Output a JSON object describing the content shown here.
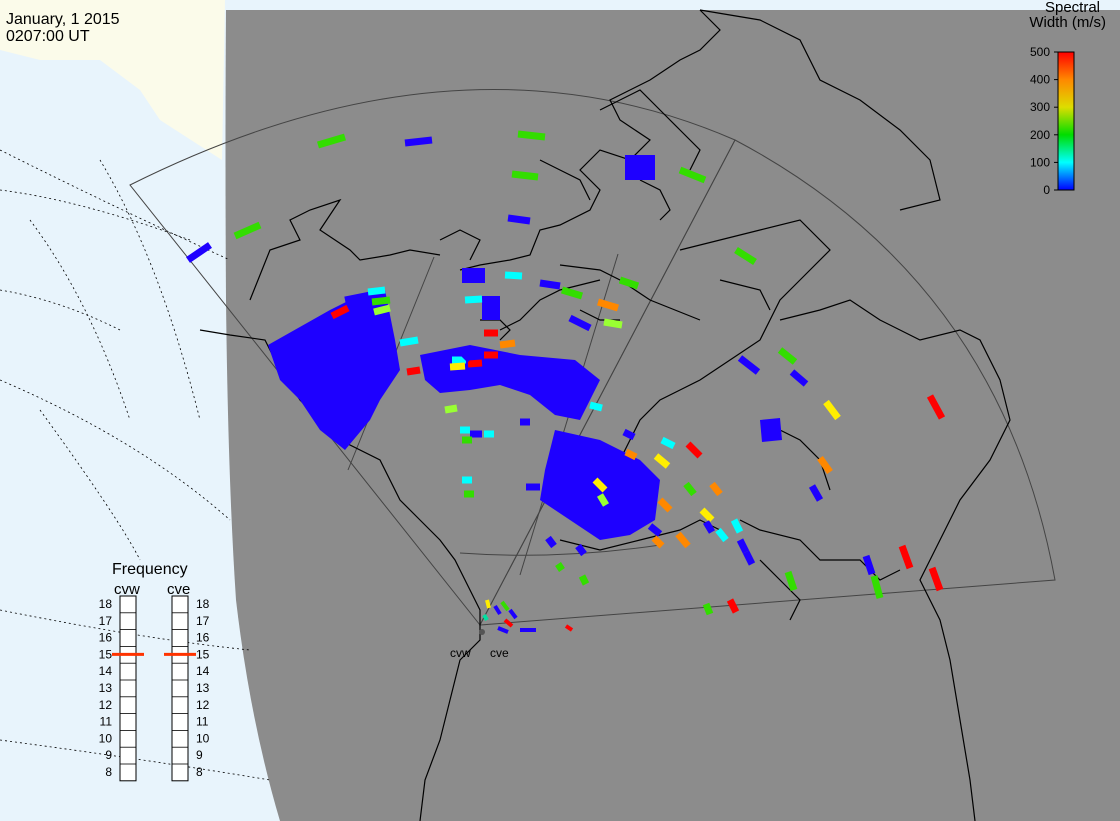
{
  "header": {
    "date": "January, 1 2015",
    "time": "0207:00 UT"
  },
  "colorbar": {
    "title_line1": "Spectral",
    "title_line2": "Width (m/s)",
    "ticks": [
      "500",
      "400",
      "300",
      "200",
      "100",
      "0"
    ],
    "range": [
      0,
      500
    ],
    "colors": [
      "#ff0000",
      "#ff8800",
      "#ffff00",
      "#00dd00",
      "#00ffff",
      "#0000ff"
    ]
  },
  "frequency_panel": {
    "title": "Frequency",
    "radar_left": "cvw",
    "radar_right": "cve",
    "scale_labels": [
      "18",
      "17",
      "16",
      "15",
      "14",
      "13",
      "12",
      "11",
      "10",
      "9",
      "8"
    ],
    "left_value": 15,
    "right_value": 15,
    "marker_color": "#ff3300"
  },
  "stations": {
    "left": "cvw",
    "right": "cve"
  },
  "colors": {
    "background_land": "#8c8c8c",
    "ocean": "#e8f4fc",
    "ice": "#fbfbea",
    "coast": "#000000"
  }
}
